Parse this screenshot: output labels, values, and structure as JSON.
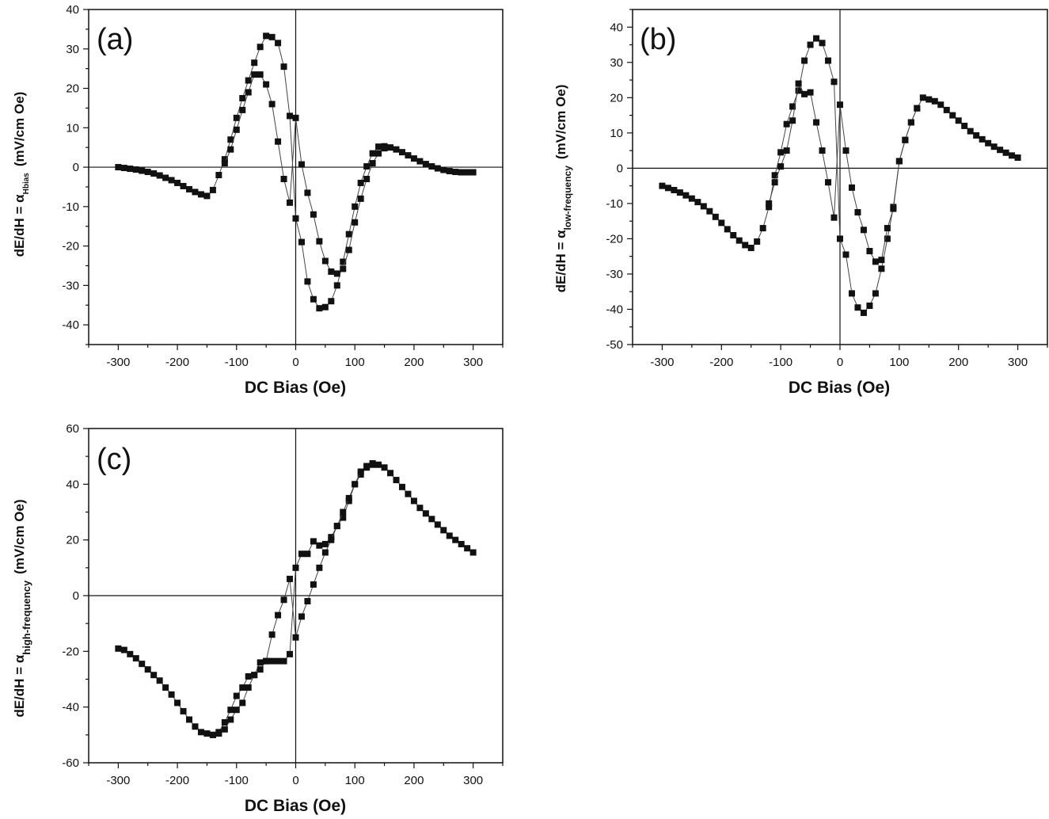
{
  "chart_data": [
    {
      "type": "scatter",
      "panel_label": "(a)",
      "xlabel": "DC Bias (Oe)",
      "ylabel": "dE/dH = α",
      "ylabel_subscript": "Hbias",
      "ylabel_unit": "(mV/cm Oe)",
      "xlim": [
        -350,
        350
      ],
      "ylim": [
        -45,
        40
      ],
      "xticks": [
        -300,
        -200,
        -100,
        0,
        100,
        200,
        300
      ],
      "yticks": [
        -40,
        -30,
        -20,
        -10,
        0,
        10,
        20,
        30,
        40
      ],
      "grid": false,
      "zero_lines": true,
      "marker": "square",
      "color": "#111111",
      "series": [
        {
          "x": [
            -300,
            -290,
            -280,
            -270,
            -260,
            -250,
            -240,
            -230,
            -220,
            -210,
            -200,
            -190,
            -180,
            -170,
            -160,
            -150,
            -140,
            -130,
            -120,
            -110,
            -100,
            -90,
            -80,
            -70,
            -60,
            -50,
            -40,
            -30,
            -20,
            -10,
            0,
            10,
            20,
            30,
            40,
            50,
            60,
            70,
            80,
            90,
            100,
            110,
            120,
            130,
            140,
            150,
            160,
            170,
            180,
            190,
            200,
            210,
            220,
            230,
            240,
            250,
            260,
            270,
            280,
            290,
            300
          ],
          "y": [
            0,
            -0.2,
            -0.4,
            -0.6,
            -0.9,
            -1.2,
            -1.6,
            -2.1,
            -2.7,
            -3.3,
            -4.0,
            -4.8,
            -5.6,
            -6.3,
            -6.9,
            -7.3,
            -5.8,
            -2.0,
            2.0,
            7.0,
            12.5,
            17.5,
            22.0,
            26.5,
            30.5,
            33.3,
            33.0,
            31.5,
            25.5,
            13.0,
            -13.0,
            -19.0,
            -29.0,
            -33.5,
            -35.8,
            -35.5,
            -34.0,
            -30.0,
            -24.0,
            -17.0,
            -10.0,
            -4.0,
            0.2,
            3.5,
            5.2,
            5.3,
            5.0,
            4.5,
            3.8,
            3.0,
            2.2,
            1.5,
            0.8,
            0.2,
            -0.3,
            -0.7,
            -1.0,
            -1.2,
            -1.3,
            -1.3,
            -1.3
          ]
        },
        {
          "x": [
            -120,
            -110,
            -100,
            -90,
            -80,
            -70,
            -60,
            -50,
            -40,
            -30,
            -20,
            -10,
            0,
            10,
            20,
            30,
            40,
            50,
            60,
            70,
            80,
            90,
            100,
            110,
            120,
            130,
            140,
            150
          ],
          "y": [
            1.0,
            4.5,
            9.5,
            14.5,
            19.0,
            23.5,
            23.5,
            21.0,
            16.0,
            6.5,
            -3.0,
            -9.0,
            12.5,
            0.7,
            -6.5,
            -12.0,
            -18.8,
            -23.8,
            -26.5,
            -27.0,
            -25.8,
            -21.0,
            -14.0,
            -8.0,
            -3.0,
            1.0,
            3.5,
            4.8
          ]
        }
      ]
    },
    {
      "type": "scatter",
      "panel_label": "(b)",
      "xlabel": "DC Bias (Oe)",
      "ylabel": "dE/dH = α",
      "ylabel_subscript": "low-frequency",
      "ylabel_unit": "(mV/cm Oe)",
      "xlim": [
        -350,
        350
      ],
      "ylim": [
        -50,
        45
      ],
      "xticks": [
        -300,
        -200,
        -100,
        0,
        100,
        200,
        300
      ],
      "yticks": [
        -50,
        -40,
        -30,
        -20,
        -10,
        0,
        10,
        20,
        30,
        40
      ],
      "grid": false,
      "zero_lines": true,
      "marker": "square",
      "color": "#111111",
      "series": [
        {
          "x": [
            -300,
            -290,
            -280,
            -270,
            -260,
            -250,
            -240,
            -230,
            -220,
            -210,
            -200,
            -190,
            -180,
            -170,
            -160,
            -150,
            -140,
            -130,
            -120,
            -110,
            -100,
            -90,
            -80,
            -70,
            -60,
            -50,
            -40,
            -30,
            -20,
            -10,
            0,
            10,
            20,
            30,
            40,
            50,
            60,
            70,
            80,
            90,
            100,
            110,
            120,
            130,
            140,
            150,
            160,
            170,
            180,
            190,
            200,
            210,
            220,
            230,
            240,
            250,
            260,
            270,
            280,
            290,
            300
          ],
          "y": [
            -5.0,
            -5.6,
            -6.2,
            -6.9,
            -7.7,
            -8.6,
            -9.6,
            -10.8,
            -12.2,
            -13.8,
            -15.5,
            -17.3,
            -19.0,
            -20.5,
            -21.8,
            -22.6,
            -20.8,
            -17.0,
            -11.0,
            -2.0,
            4.5,
            12.5,
            17.5,
            22.0,
            30.5,
            35.0,
            36.8,
            35.5,
            30.5,
            24.5,
            -20.0,
            -24.5,
            -35.5,
            -39.5,
            -41.0,
            -39.0,
            -35.5,
            -28.5,
            -20.0,
            -11.0,
            2.0,
            8.0,
            13.0,
            17.0,
            20.0,
            19.5,
            19.0,
            18.0,
            16.5,
            15.0,
            13.5,
            12.0,
            10.5,
            9.3,
            8.2,
            7.1,
            6.1,
            5.2,
            4.4,
            3.6,
            3.0
          ]
        },
        {
          "x": [
            -120,
            -110,
            -100,
            -90,
            -80,
            -70,
            -60,
            -50,
            -40,
            -30,
            -20,
            -10,
            0,
            10,
            20,
            30,
            40,
            50,
            60,
            70,
            80,
            90,
            100,
            110,
            120,
            130
          ],
          "y": [
            -10.0,
            -4.0,
            0.5,
            5.0,
            13.5,
            24.0,
            21.0,
            21.5,
            13.0,
            5.0,
            -4.0,
            -14.0,
            18.0,
            5.0,
            -5.5,
            -12.5,
            -17.5,
            -23.5,
            -26.5,
            -26.0,
            -17.0,
            -11.5,
            2.0,
            8.0,
            13.0,
            17.0
          ]
        }
      ]
    },
    {
      "type": "scatter",
      "panel_label": "(c)",
      "xlabel": "DC Bias (Oe)",
      "ylabel": "dE/dH = α",
      "ylabel_subscript": "high-frequency",
      "ylabel_unit": "(mV/cm Oe)",
      "xlim": [
        -350,
        350
      ],
      "ylim": [
        -60,
        60
      ],
      "xticks": [
        -300,
        -200,
        -100,
        0,
        100,
        200,
        300
      ],
      "yticks": [
        -60,
        -40,
        -20,
        0,
        20,
        40,
        60
      ],
      "grid": false,
      "zero_lines": true,
      "marker": "square",
      "color": "#111111",
      "series": [
        {
          "x": [
            -300,
            -290,
            -280,
            -270,
            -260,
            -250,
            -240,
            -230,
            -220,
            -210,
            -200,
            -190,
            -180,
            -170,
            -160,
            -150,
            -140,
            -130,
            -120,
            -110,
            -100,
            -90,
            -80,
            -70,
            -60,
            -50,
            -40,
            -30,
            -20,
            -10,
            0,
            10,
            20,
            30,
            40,
            50,
            60,
            70,
            80,
            90,
            100,
            110,
            120,
            130,
            140,
            150,
            160,
            170,
            180,
            190,
            200,
            210,
            220,
            230,
            240,
            250,
            260,
            270,
            280,
            290,
            300
          ],
          "y": [
            -19.0,
            -19.5,
            -21.0,
            -22.5,
            -24.5,
            -26.5,
            -28.5,
            -30.5,
            -33.0,
            -35.5,
            -38.5,
            -41.5,
            -44.5,
            -47.0,
            -49.0,
            -49.5,
            -50.0,
            -49.0,
            -45.5,
            -41.0,
            -36.0,
            -33.0,
            -29.0,
            -28.5,
            -24.0,
            -23.5,
            -23.5,
            -23.5,
            -23.5,
            -21.0,
            10.0,
            15.0,
            15.0,
            19.5,
            18.0,
            18.5,
            21.0,
            25.0,
            28.0,
            34.0,
            40.0,
            43.5,
            46.0,
            47.0,
            47.0,
            46.0,
            44.0,
            41.5,
            39.0,
            36.5,
            34.0,
            31.5,
            29.5,
            27.5,
            25.5,
            23.5,
            21.5,
            20.0,
            18.5,
            17.0,
            15.5
          ]
        },
        {
          "x": [
            -140,
            -130,
            -120,
            -110,
            -100,
            -90,
            -80,
            -70,
            -60,
            -50,
            -40,
            -30,
            -20,
            -10,
            0,
            10,
            20,
            30,
            40,
            50,
            60,
            70,
            80,
            90,
            100,
            110,
            120,
            130
          ],
          "y": [
            -50.0,
            -49.5,
            -48.0,
            -44.5,
            -41.0,
            -38.5,
            -33.0,
            -28.5,
            -26.5,
            -23.5,
            -14.0,
            -7.0,
            -1.5,
            6.0,
            -15.0,
            -7.5,
            -2.0,
            4.0,
            10.0,
            15.5,
            20.0,
            25.0,
            30.0,
            35.0,
            40.0,
            44.5,
            46.5,
            47.5
          ]
        }
      ]
    }
  ]
}
